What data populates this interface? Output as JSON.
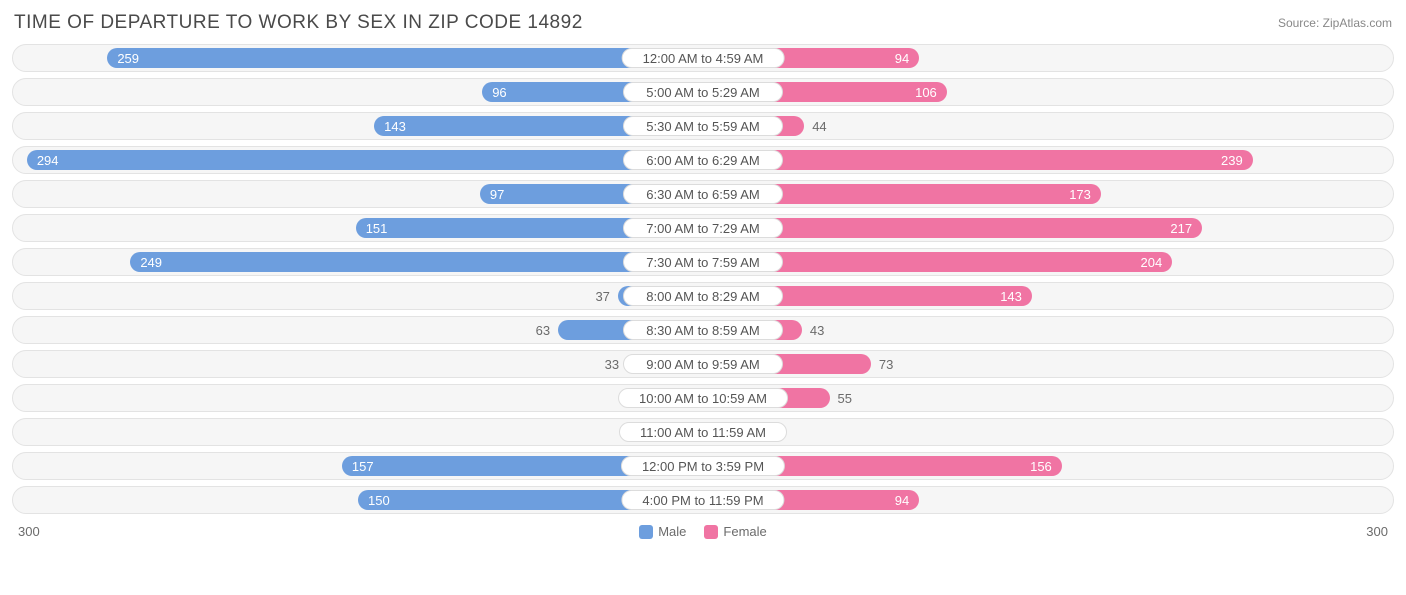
{
  "title": "TIME OF DEPARTURE TO WORK BY SEX IN ZIP CODE 14892",
  "source": "Source: ZipAtlas.com",
  "chart": {
    "type": "diverging-bar",
    "max": 300,
    "axis_left": "300",
    "axis_right": "300",
    "male_color": "#6d9ede",
    "female_color": "#f074a3",
    "track_bg": "#f6f6f6",
    "track_border": "#e3e3e3",
    "text_inside": "#ffffff",
    "text_outside": "#6b6b6b",
    "value_threshold_pct": 30,
    "rows": [
      {
        "label": "12:00 AM to 4:59 AM",
        "male": 259,
        "female": 94
      },
      {
        "label": "5:00 AM to 5:29 AM",
        "male": 96,
        "female": 106
      },
      {
        "label": "5:30 AM to 5:59 AM",
        "male": 143,
        "female": 44
      },
      {
        "label": "6:00 AM to 6:29 AM",
        "male": 294,
        "female": 239
      },
      {
        "label": "6:30 AM to 6:59 AM",
        "male": 97,
        "female": 173
      },
      {
        "label": "7:00 AM to 7:29 AM",
        "male": 151,
        "female": 217
      },
      {
        "label": "7:30 AM to 7:59 AM",
        "male": 249,
        "female": 204
      },
      {
        "label": "8:00 AM to 8:29 AM",
        "male": 37,
        "female": 143
      },
      {
        "label": "8:30 AM to 8:59 AM",
        "male": 63,
        "female": 43
      },
      {
        "label": "9:00 AM to 9:59 AM",
        "male": 33,
        "female": 73
      },
      {
        "label": "10:00 AM to 10:59 AM",
        "male": 0,
        "female": 55
      },
      {
        "label": "11:00 AM to 11:59 AM",
        "male": 8,
        "female": 13
      },
      {
        "label": "12:00 PM to 3:59 PM",
        "male": 157,
        "female": 156
      },
      {
        "label": "4:00 PM to 11:59 PM",
        "male": 150,
        "female": 94
      }
    ],
    "legend": {
      "male": "Male",
      "female": "Female"
    }
  }
}
